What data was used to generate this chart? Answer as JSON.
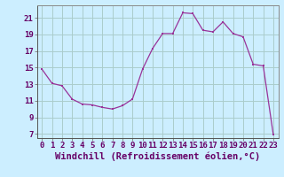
{
  "x": [
    0,
    1,
    2,
    3,
    4,
    5,
    6,
    7,
    8,
    9,
    10,
    11,
    12,
    13,
    14,
    15,
    16,
    17,
    18,
    19,
    20,
    21,
    22,
    23
  ],
  "y": [
    14.8,
    13.1,
    12.8,
    11.2,
    10.6,
    10.5,
    10.2,
    10.0,
    10.4,
    11.2,
    14.8,
    17.3,
    19.1,
    19.1,
    21.6,
    21.5,
    19.5,
    19.3,
    20.5,
    19.1,
    18.7,
    15.4,
    15.2,
    6.9
  ],
  "line_color": "#993399",
  "marker": "s",
  "marker_size": 2,
  "bg_color": "#cceeff",
  "grid_color": "#aacccc",
  "xlabel": "Windchill (Refroidissement éolien,°C)",
  "xlim": [
    -0.5,
    23.5
  ],
  "ylim": [
    6.5,
    22.5
  ],
  "yticks": [
    7,
    9,
    11,
    13,
    15,
    17,
    19,
    21
  ],
  "xticks": [
    0,
    1,
    2,
    3,
    4,
    5,
    6,
    7,
    8,
    9,
    10,
    11,
    12,
    13,
    14,
    15,
    16,
    17,
    18,
    19,
    20,
    21,
    22,
    23
  ],
  "tick_label_size": 6.5,
  "xlabel_size": 7.5,
  "axis_color": "#660066",
  "spine_color": "#888888"
}
